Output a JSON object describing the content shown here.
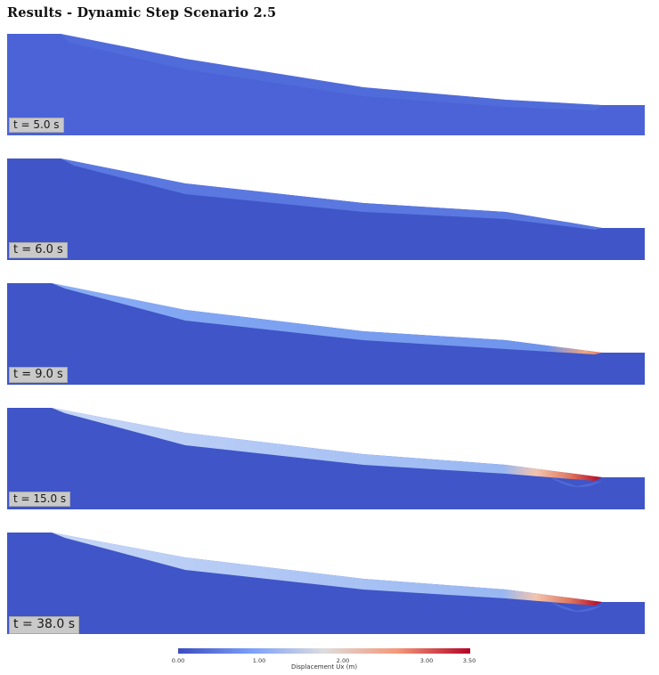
{
  "title": "Results - Dynamic Step Scenario 2.5",
  "panels": [
    {
      "time_label": "t = 5.0 s"
    },
    {
      "time_label": "t = 6.0 s"
    },
    {
      "time_label": "t = 9.0 s"
    },
    {
      "time_label": "t = 15.0 s"
    },
    {
      "time_label": "t = 38.0 s"
    }
  ],
  "colorbar": {
    "title": "Displacement Ux (m)",
    "range": [
      0.0,
      3.5
    ],
    "ticks": [
      "0.00",
      "1.00",
      "2.00",
      "3.00",
      "3.50"
    ],
    "colors": {
      "low": "#3b4cc0",
      "mid": "#dddddd",
      "high": "#b40426"
    }
  }
}
